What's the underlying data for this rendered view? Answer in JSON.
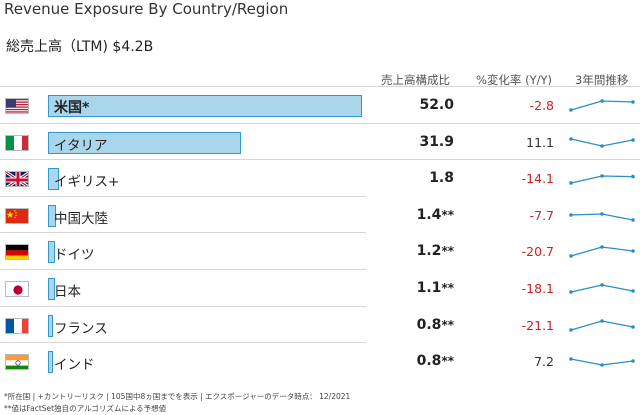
{
  "header": {
    "title": "Revenue Exposure By Country/Region",
    "subtitle": "総売上高（LTM) $4.2B"
  },
  "columns": {
    "share": "売上高構成比",
    "change": "%変化率 (Y/Y)",
    "trend": "3年間推移"
  },
  "rows": [
    {
      "flag": "us-flag-icon",
      "name": "米国*",
      "bold": true,
      "share": "52.0",
      "share_suffix": "",
      "change": "-2.8",
      "negative": true,
      "trend": [
        0.3,
        0.75,
        0.7
      ],
      "divider_full": true
    },
    {
      "flag": "it-flag-icon",
      "name": "イタリア",
      "bold": false,
      "share": "31.9",
      "share_suffix": "",
      "change": "11.1",
      "negative": false,
      "trend": [
        0.7,
        0.35,
        0.65
      ],
      "divider_full": true
    },
    {
      "flag": "uk-flag-icon",
      "name": "イギリス+",
      "bold": false,
      "share": "1.8",
      "share_suffix": "",
      "change": "-14.1",
      "negative": true,
      "trend": [
        0.3,
        0.65,
        0.62
      ],
      "divider_full": true
    },
    {
      "flag": "cn-flag-icon",
      "name": "中国大陸",
      "bold": false,
      "share": "1.4",
      "share_suffix": "**",
      "change": "-7.7",
      "negative": true,
      "trend": [
        0.55,
        0.6,
        0.3
      ],
      "divider_full": false
    },
    {
      "flag": "de-flag-icon",
      "name": "ドイツ",
      "bold": false,
      "share": "1.2",
      "share_suffix": "**",
      "change": "-20.7",
      "negative": true,
      "trend": [
        0.3,
        0.75,
        0.55
      ],
      "divider_full": false
    },
    {
      "flag": "jp-flag-icon",
      "name": "日本",
      "bold": false,
      "share": "1.1",
      "share_suffix": "**",
      "change": "-18.1",
      "negative": true,
      "trend": [
        0.35,
        0.7,
        0.4
      ],
      "divider_full": false
    },
    {
      "flag": "fr-flag-icon",
      "name": "フランス",
      "bold": false,
      "share": "0.8",
      "share_suffix": "**",
      "change": "-21.1",
      "negative": true,
      "trend": [
        0.3,
        0.75,
        0.45
      ],
      "divider_full": false
    },
    {
      "flag": "in-flag-icon",
      "name": "インド",
      "bold": false,
      "share": "0.8",
      "share_suffix": "**",
      "change": "7.2",
      "negative": false,
      "trend": [
        0.65,
        0.35,
        0.55
      ],
      "divider_full": false
    }
  ],
  "footnotes": {
    "line1": "*所在国 | +カントリーリスク | 105国中8ヵ国までを表示 | エクスポージャーのデータ時点： 12/2021",
    "line2": "**値はFactSet独自のアルゴリズムによる予想値"
  },
  "colors": {
    "bar_fill": "#a9d6ea",
    "bar_border": "#3399cc",
    "negative": "#cc2222",
    "sparkline": "#2a8fc7"
  }
}
